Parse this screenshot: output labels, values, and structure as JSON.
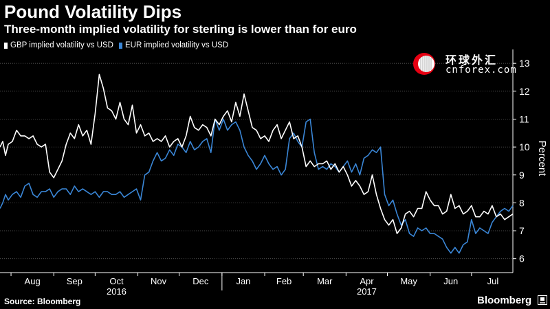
{
  "header": {
    "title": "Pound Volatility Dips",
    "subtitle": "Three-month implied volatility for sterling is lower than for euro"
  },
  "watermark": {
    "chinese_text": "环球外汇",
    "url_text": "cnforex.com",
    "logo_icon": "cnforex-logo-icon",
    "logo_color": "#e60012"
  },
  "footer": {
    "source": "Source: Bloomberg",
    "brand": "Bloomberg",
    "brand_icon": "bloomberg-terminal-icon"
  },
  "colors": {
    "background": "#000000",
    "gbp_line": "#ffffff",
    "eur_line": "#3a86d6",
    "axis": "#ffffff",
    "grid": "#5a5a5a"
  },
  "chart_data": {
    "type": "line",
    "ylabel": "Percent",
    "ylim": [
      5.5,
      13.3
    ],
    "yticks": [
      6,
      7,
      8,
      9,
      10,
      11,
      12,
      13
    ],
    "x_axis_position": "bottom",
    "y_axis_position": "right",
    "grid": "horizontal dotted",
    "legend_position": "top-left",
    "x_month_labels": [
      "Aug",
      "Sep",
      "Oct",
      "Nov",
      "Dec",
      "Jan",
      "Feb",
      "Mar",
      "Apr",
      "May",
      "Jun",
      "Jul"
    ],
    "x_year_labels": [
      {
        "label": "2016",
        "under": "Oct"
      },
      {
        "label": "2017",
        "under": "Apr"
      }
    ],
    "x_range": [
      "2016-07-24",
      "2017-07-31"
    ],
    "series": [
      {
        "name": "GBP implied volatility vs USD",
        "color": "#ffffff",
        "x": [
          "2016-07-24",
          "2016-07-26",
          "2016-07-28",
          "2016-07-30",
          "2016-08-02",
          "2016-08-05",
          "2016-08-08",
          "2016-08-11",
          "2016-08-14",
          "2016-08-17",
          "2016-08-20",
          "2016-08-23",
          "2016-08-26",
          "2016-08-29",
          "2016-09-01",
          "2016-09-04",
          "2016-09-07",
          "2016-09-10",
          "2016-09-13",
          "2016-09-16",
          "2016-09-19",
          "2016-09-22",
          "2016-09-25",
          "2016-09-28",
          "2016-10-01",
          "2016-10-04",
          "2016-10-07",
          "2016-10-10",
          "2016-10-13",
          "2016-10-16",
          "2016-10-19",
          "2016-10-22",
          "2016-10-25",
          "2016-10-28",
          "2016-10-31",
          "2016-11-03",
          "2016-11-06",
          "2016-11-09",
          "2016-11-12",
          "2016-11-15",
          "2016-11-18",
          "2016-11-21",
          "2016-11-24",
          "2016-11-27",
          "2016-11-30",
          "2016-12-03",
          "2016-12-06",
          "2016-12-09",
          "2016-12-12",
          "2016-12-15",
          "2016-12-18",
          "2016-12-21",
          "2016-12-24",
          "2016-12-27",
          "2016-12-30",
          "2017-01-02",
          "2017-01-05",
          "2017-01-08",
          "2017-01-11",
          "2017-01-14",
          "2017-01-17",
          "2017-01-20",
          "2017-01-23",
          "2017-01-26",
          "2017-01-29",
          "2017-02-01",
          "2017-02-04",
          "2017-02-07",
          "2017-02-10",
          "2017-02-13",
          "2017-02-16",
          "2017-02-19",
          "2017-02-22",
          "2017-02-25",
          "2017-02-28",
          "2017-03-03",
          "2017-03-06",
          "2017-03-09",
          "2017-03-12",
          "2017-03-15",
          "2017-03-18",
          "2017-03-21",
          "2017-03-24",
          "2017-03-27",
          "2017-03-30",
          "2017-04-02",
          "2017-04-05",
          "2017-04-08",
          "2017-04-11",
          "2017-04-14",
          "2017-04-17",
          "2017-04-20",
          "2017-04-23",
          "2017-04-26",
          "2017-04-29",
          "2017-05-02",
          "2017-05-05",
          "2017-05-08",
          "2017-05-11",
          "2017-05-14",
          "2017-05-17",
          "2017-05-20",
          "2017-05-23",
          "2017-05-26",
          "2017-05-29",
          "2017-06-01",
          "2017-06-04",
          "2017-06-07",
          "2017-06-10",
          "2017-06-13",
          "2017-06-16",
          "2017-06-19",
          "2017-06-22",
          "2017-06-25",
          "2017-06-28",
          "2017-07-01",
          "2017-07-04",
          "2017-07-07",
          "2017-07-10",
          "2017-07-13",
          "2017-07-16",
          "2017-07-19",
          "2017-07-22",
          "2017-07-25",
          "2017-07-28",
          "2017-07-31"
        ],
        "values": [
          10.0,
          10.2,
          9.7,
          10.1,
          10.2,
          10.6,
          10.4,
          10.4,
          10.3,
          10.4,
          10.1,
          10.0,
          10.1,
          9.1,
          8.9,
          9.2,
          9.5,
          10.1,
          10.5,
          10.3,
          10.8,
          10.4,
          10.6,
          10.1,
          11.2,
          12.6,
          12.1,
          11.4,
          11.3,
          11.0,
          11.6,
          11.0,
          10.8,
          11.5,
          10.5,
          10.8,
          10.4,
          10.5,
          10.2,
          10.3,
          10.2,
          10.4,
          10.0,
          10.2,
          10.3,
          10.0,
          10.4,
          11.1,
          10.7,
          10.6,
          10.8,
          10.7,
          10.4,
          11.0,
          10.8,
          11.1,
          11.3,
          10.9,
          11.6,
          11.1,
          11.9,
          11.3,
          10.7,
          10.6,
          10.3,
          10.4,
          10.2,
          10.6,
          10.8,
          10.3,
          10.6,
          10.9,
          10.3,
          10.4,
          10.0,
          9.3,
          9.5,
          9.3,
          9.4,
          9.4,
          9.5,
          9.2,
          9.4,
          9.1,
          9.3,
          9.0,
          8.6,
          8.8,
          8.6,
          8.3,
          8.4,
          9.0,
          8.3,
          7.8,
          7.4,
          7.2,
          7.4,
          6.9,
          7.1,
          7.6,
          7.7,
          7.5,
          7.8,
          7.8,
          8.4,
          8.1,
          7.9,
          7.9,
          7.6,
          7.7,
          8.3,
          7.8,
          7.9,
          7.6,
          7.7,
          7.9,
          7.5,
          7.5,
          7.7,
          7.6,
          7.9,
          7.5,
          7.6,
          7.4,
          7.5,
          7.6
        ]
      },
      {
        "name": "EUR implied volatility vs USD",
        "color": "#3a86d6",
        "x": [
          "2016-07-24",
          "2016-07-26",
          "2016-07-28",
          "2016-07-30",
          "2016-08-02",
          "2016-08-05",
          "2016-08-08",
          "2016-08-11",
          "2016-08-14",
          "2016-08-17",
          "2016-08-20",
          "2016-08-23",
          "2016-08-26",
          "2016-08-29",
          "2016-09-01",
          "2016-09-04",
          "2016-09-07",
          "2016-09-10",
          "2016-09-13",
          "2016-09-16",
          "2016-09-19",
          "2016-09-22",
          "2016-09-25",
          "2016-09-28",
          "2016-10-01",
          "2016-10-04",
          "2016-10-07",
          "2016-10-10",
          "2016-10-13",
          "2016-10-16",
          "2016-10-19",
          "2016-10-22",
          "2016-10-25",
          "2016-10-28",
          "2016-10-31",
          "2016-11-03",
          "2016-11-06",
          "2016-11-09",
          "2016-11-12",
          "2016-11-15",
          "2016-11-18",
          "2016-11-21",
          "2016-11-24",
          "2016-11-27",
          "2016-11-30",
          "2016-12-03",
          "2016-12-06",
          "2016-12-09",
          "2016-12-12",
          "2016-12-15",
          "2016-12-18",
          "2016-12-21",
          "2016-12-24",
          "2016-12-27",
          "2016-12-30",
          "2017-01-02",
          "2017-01-05",
          "2017-01-08",
          "2017-01-11",
          "2017-01-14",
          "2017-01-17",
          "2017-01-20",
          "2017-01-23",
          "2017-01-26",
          "2017-01-29",
          "2017-02-01",
          "2017-02-04",
          "2017-02-07",
          "2017-02-10",
          "2017-02-13",
          "2017-02-16",
          "2017-02-19",
          "2017-02-22",
          "2017-02-25",
          "2017-02-28",
          "2017-03-03",
          "2017-03-06",
          "2017-03-09",
          "2017-03-12",
          "2017-03-15",
          "2017-03-18",
          "2017-03-21",
          "2017-03-24",
          "2017-03-27",
          "2017-03-30",
          "2017-04-02",
          "2017-04-05",
          "2017-04-08",
          "2017-04-11",
          "2017-04-14",
          "2017-04-17",
          "2017-04-20",
          "2017-04-23",
          "2017-04-26",
          "2017-04-29",
          "2017-05-02",
          "2017-05-05",
          "2017-05-08",
          "2017-05-11",
          "2017-05-14",
          "2017-05-17",
          "2017-05-20",
          "2017-05-23",
          "2017-05-26",
          "2017-05-29",
          "2017-06-01",
          "2017-06-04",
          "2017-06-07",
          "2017-06-10",
          "2017-06-13",
          "2017-06-16",
          "2017-06-19",
          "2017-06-22",
          "2017-06-25",
          "2017-06-28",
          "2017-07-01",
          "2017-07-04",
          "2017-07-07",
          "2017-07-10",
          "2017-07-13",
          "2017-07-16",
          "2017-07-19",
          "2017-07-22",
          "2017-07-25",
          "2017-07-28",
          "2017-07-31"
        ],
        "values": [
          7.8,
          8.0,
          8.3,
          8.1,
          8.3,
          8.4,
          8.2,
          8.6,
          8.7,
          8.3,
          8.2,
          8.4,
          8.4,
          8.5,
          8.2,
          8.4,
          8.5,
          8.5,
          8.3,
          8.6,
          8.4,
          8.5,
          8.4,
          8.3,
          8.4,
          8.2,
          8.4,
          8.4,
          8.3,
          8.3,
          8.4,
          8.2,
          8.3,
          8.4,
          8.5,
          8.1,
          9.0,
          9.1,
          9.5,
          9.8,
          9.5,
          9.6,
          9.9,
          9.7,
          10.1,
          10.0,
          9.8,
          10.2,
          9.9,
          10.0,
          10.2,
          10.3,
          9.8,
          11.0,
          10.6,
          11.0,
          10.6,
          10.8,
          10.9,
          10.6,
          10.0,
          9.7,
          9.5,
          9.2,
          9.4,
          9.7,
          9.4,
          9.2,
          9.3,
          9.0,
          9.2,
          10.3,
          10.5,
          10.2,
          10.0,
          10.9,
          11.0,
          9.8,
          9.2,
          9.3,
          9.2,
          9.4,
          9.3,
          9.1,
          9.3,
          9.5,
          9.1,
          9.4,
          9.0,
          9.6,
          9.7,
          9.9,
          9.8,
          10.0,
          8.3,
          7.9,
          8.1,
          7.6,
          7.2,
          7.4,
          6.9,
          6.8,
          7.1,
          7.0,
          7.1,
          6.9,
          6.9,
          6.8,
          6.7,
          6.4,
          6.2,
          6.4,
          6.2,
          6.5,
          6.6,
          7.4,
          6.9,
          7.1,
          7.0,
          6.9,
          7.3,
          7.5,
          7.7,
          7.8,
          7.7,
          7.9
        ]
      }
    ]
  }
}
